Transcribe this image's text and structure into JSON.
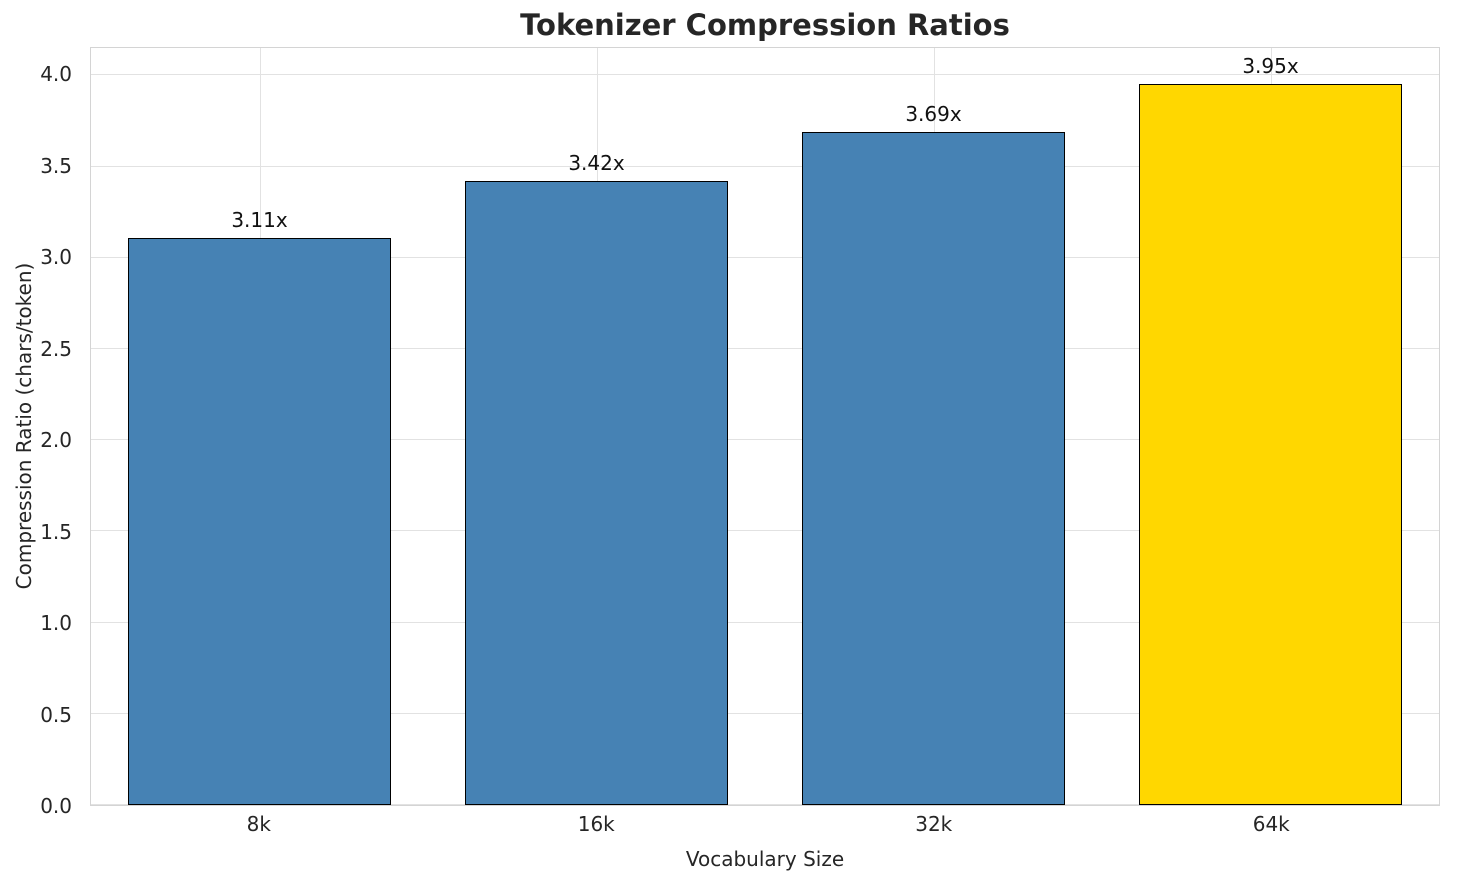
{
  "chart_data": {
    "type": "bar",
    "title": "Tokenizer Compression Ratios",
    "xlabel": "Vocabulary Size",
    "ylabel": "Compression Ratio (chars/token)",
    "categories": [
      "8k",
      "16k",
      "32k",
      "64k"
    ],
    "values": [
      3.11,
      3.42,
      3.69,
      3.95
    ],
    "value_labels": [
      "3.11x",
      "3.42x",
      "3.69x",
      "3.95x"
    ],
    "bar_colors": [
      "#4682b4",
      "#4682b4",
      "#4682b4",
      "#ffd700"
    ],
    "bar_edge_color": "#000000",
    "ylim": [
      0,
      4.15
    ],
    "yticks": [
      0.0,
      0.5,
      1.0,
      1.5,
      2.0,
      2.5,
      3.0,
      3.5,
      4.0
    ],
    "ytick_labels": [
      "0.0",
      "0.5",
      "1.0",
      "1.5",
      "2.0",
      "2.5",
      "3.0",
      "3.5",
      "4.0"
    ],
    "grid": true,
    "legend": "none",
    "colors": {
      "bar_default": "#4682b4",
      "bar_highlight": "#ffd700",
      "grid": "#e2e2e2",
      "text": "#262626"
    }
  }
}
